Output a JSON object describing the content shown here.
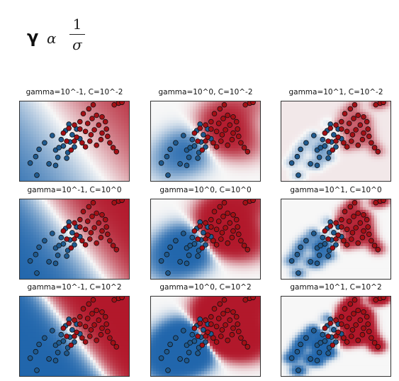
{
  "formula": {
    "lhs": "γ",
    "relation": "α",
    "numerator": "1",
    "denominator": "σ"
  },
  "colors": {
    "class_positive": "#a50f15",
    "class_negative": "#1f5a8f",
    "map_red": "#b2182b",
    "map_blue": "#2166ac",
    "map_mid": "#f7f7f7"
  },
  "chart_data": [
    {
      "type": "heatmap",
      "title": "gamma=10^-1, C=10^-2",
      "gamma": 0.1,
      "C": 0.01
    },
    {
      "type": "heatmap",
      "title": "gamma=10^0, C=10^-2",
      "gamma": 1,
      "C": 0.01
    },
    {
      "type": "heatmap",
      "title": "gamma=10^1, C=10^-2",
      "gamma": 10,
      "C": 0.01
    },
    {
      "type": "heatmap",
      "title": "gamma=10^-1, C=10^0",
      "gamma": 0.1,
      "C": 1
    },
    {
      "type": "heatmap",
      "title": "gamma=10^0, C=10^0",
      "gamma": 1,
      "C": 1
    },
    {
      "type": "heatmap",
      "title": "gamma=10^1, C=10^0",
      "gamma": 10,
      "C": 1
    },
    {
      "type": "heatmap",
      "title": "gamma=10^-1, C=10^2",
      "gamma": 0.1,
      "C": 100
    },
    {
      "type": "heatmap",
      "title": "gamma=10^0, C=10^2",
      "gamma": 1,
      "C": 100
    },
    {
      "type": "heatmap",
      "title": "gamma=10^1, C=10^2",
      "gamma": 10,
      "C": 100
    }
  ],
  "scatter_points": {
    "class_a": [
      [
        0.1,
        0.77
      ],
      [
        0.15,
        0.69
      ],
      [
        0.18,
        0.6
      ],
      [
        0.23,
        0.52
      ],
      [
        0.27,
        0.78
      ],
      [
        0.3,
        0.43
      ],
      [
        0.33,
        0.61
      ],
      [
        0.35,
        0.7
      ],
      [
        0.38,
        0.48
      ],
      [
        0.4,
        0.56
      ],
      [
        0.42,
        0.37
      ],
      [
        0.44,
        0.64
      ],
      [
        0.46,
        0.51
      ],
      [
        0.48,
        0.42
      ],
      [
        0.5,
        0.57
      ],
      [
        0.33,
        0.8
      ],
      [
        0.45,
        0.29
      ],
      [
        0.55,
        0.47
      ],
      [
        0.43,
        0.71
      ],
      [
        0.36,
        0.58
      ],
      [
        0.52,
        0.35
      ],
      [
        0.16,
        0.92
      ]
    ],
    "class_b": [
      [
        0.4,
        0.4
      ],
      [
        0.43,
        0.5
      ],
      [
        0.45,
        0.34
      ],
      [
        0.47,
        0.61
      ],
      [
        0.5,
        0.3
      ],
      [
        0.52,
        0.45
      ],
      [
        0.55,
        0.26
      ],
      [
        0.57,
        0.52
      ],
      [
        0.58,
        0.16
      ],
      [
        0.6,
        0.38
      ],
      [
        0.62,
        0.28
      ],
      [
        0.64,
        0.5
      ],
      [
        0.66,
        0.22
      ],
      [
        0.68,
        0.36
      ],
      [
        0.7,
        0.18
      ],
      [
        0.72,
        0.3
      ],
      [
        0.75,
        0.4
      ],
      [
        0.78,
        0.26
      ],
      [
        0.8,
        0.44
      ],
      [
        0.82,
        0.52
      ],
      [
        0.85,
        0.58
      ],
      [
        0.88,
        0.63
      ],
      [
        0.9,
        0.03
      ],
      [
        0.93,
        0.02
      ],
      [
        0.86,
        0.05
      ],
      [
        0.6,
        0.57
      ],
      [
        0.63,
        0.1
      ],
      [
        0.65,
        0.42
      ],
      [
        0.74,
        0.48
      ],
      [
        0.79,
        0.35
      ],
      [
        0.55,
        0.35
      ],
      [
        0.7,
        0.55
      ],
      [
        0.5,
        0.5
      ],
      [
        0.67,
        0.05
      ],
      [
        0.75,
        0.2
      ]
    ]
  }
}
